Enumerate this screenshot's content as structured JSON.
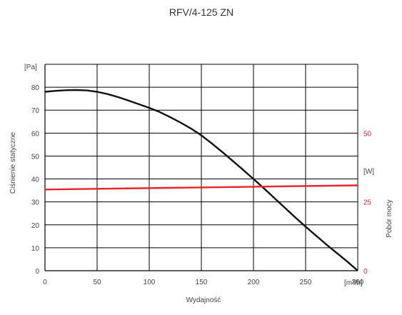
{
  "chart_data": {
    "type": "line",
    "title": "RFV/4-125 ZN",
    "xlabel": "Wydajność",
    "x_unit_label": "[m³/h]",
    "ylabel": "Ciśnienie statyczne",
    "y_unit_label": "[Pa]",
    "y2label": "Pobór mocy",
    "y2_unit_label": "[W]",
    "xlim": [
      0,
      300
    ],
    "ylim": [
      0,
      90
    ],
    "y2lim": [
      0,
      75
    ],
    "x_ticks": [
      0,
      50,
      100,
      150,
      200,
      250
    ],
    "y_ticks": [
      0,
      10,
      20,
      30,
      40,
      50,
      60,
      70,
      80
    ],
    "y2_ticks": [
      0,
      25,
      50
    ],
    "grid": true,
    "colors": {
      "pressure": "#111111",
      "power": "#e8242a",
      "axis": "#000000",
      "grid": "#000000"
    },
    "series": [
      {
        "axis": "left",
        "x": [
          0,
          10,
          20,
          30,
          40,
          50,
          60,
          70,
          80,
          90,
          100,
          110,
          120,
          130,
          140,
          150,
          160,
          170,
          180,
          190,
          200,
          210,
          220,
          230,
          240,
          250,
          260,
          270,
          280,
          290,
          300
        ],
        "values": [
          78,
          78.4,
          78.7,
          78.8,
          78.6,
          78,
          77,
          75.7,
          74.2,
          72.6,
          71,
          69.2,
          67,
          64.6,
          62,
          59,
          55.5,
          51.8,
          47.9,
          44,
          40,
          35.9,
          31.7,
          27.5,
          23.3,
          19.2,
          15.3,
          11.4,
          7.7,
          4,
          0
        ]
      },
      {
        "axis": "right",
        "x": [
          0,
          300
        ],
        "values": [
          29.5,
          31
        ]
      }
    ]
  }
}
